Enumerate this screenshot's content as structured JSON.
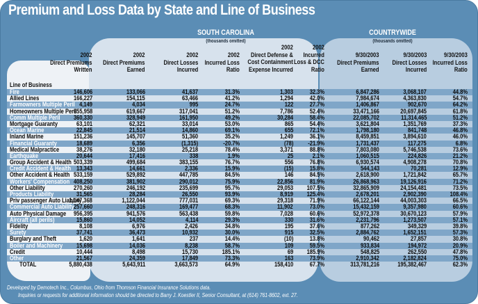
{
  "title": "Premium and Loss Data by State and Line of Business",
  "south_carolina": {
    "label": "SOUTH CAROLINA",
    "units": "(thousands omitted)"
  },
  "countrywide": {
    "label": "COUNTRYWIDE",
    "units": "(thousands omitted)"
  },
  "columns": {
    "lob": "Line of Business",
    "headers": [
      [
        "2002",
        "Direct Premiums",
        "Written"
      ],
      [
        "2002",
        "Direct Premiums",
        "Earned"
      ],
      [
        "2002",
        "Direct Losses",
        "Incurred"
      ],
      [
        "2002",
        "Incurred Loss",
        "Ratio"
      ],
      [
        "2002",
        "Direct Defense &",
        "Cost Containment",
        "Expense Incurred"
      ],
      [
        "2002",
        "Incurred",
        "Loss & DCC",
        "Ratio"
      ],
      [
        "9/30/2003",
        "Direct Premiums",
        "Earned"
      ],
      [
        "9/30/2003",
        "Direct Losses",
        "Incurred"
      ],
      [
        "9/30/2003",
        "Incurred Loss",
        "Ratio"
      ]
    ]
  },
  "rows": [
    [
      "Fire",
      "146,606",
      "133,066",
      "41,637",
      "31.3%",
      "1,303",
      "32.3%",
      "6,847,286",
      "3,068,107",
      "44.8%"
    ],
    [
      "Allied Lines",
      "166,227",
      "154,115",
      "63,466",
      "41.2%",
      "1,294",
      "42.0%",
      "7,984,674",
      "4,363,830",
      "54.7%"
    ],
    [
      "Farmowners Multiple Peril",
      "4,149",
      "4,034",
      "995",
      "24.7%",
      "122",
      "27.7%",
      "1,406,867",
      "902,670",
      "64.2%"
    ],
    [
      "Homeowners Multiple Peril",
      "655,958",
      "619,667",
      "317,041",
      "51.2%",
      "7,786",
      "52.4%",
      "33,471,166",
      "20,697,845",
      "61.8%"
    ],
    [
      "Comm Multiple Peril",
      "360,330",
      "328,949",
      "161,950",
      "49.2%",
      "30,284",
      "58.4%",
      "22,085,702",
      "11,314,465",
      "51.2%"
    ],
    [
      "Mortgage Guaranty",
      "63,101",
      "62,321",
      "33,014",
      "53.0%",
      "865",
      "54.4%",
      "3,621,804",
      "1,351,769",
      "37.3%"
    ],
    [
      "Ocean Marine",
      "22,845",
      "21,514",
      "14,860",
      "69.1%",
      "655",
      "72.1%",
      "1,798,180",
      "841,748",
      "46.8%"
    ],
    [
      "Inland Marine",
      "151,236",
      "145,707",
      "51,360",
      "35.2%",
      "1,249",
      "36.1%",
      "8,459,851",
      "3,894,610",
      "46.0%"
    ],
    [
      "Financial Guaranty",
      "18,689",
      "6,356",
      "(1,315)",
      "-20.7%",
      "(78)",
      "-21.9%",
      "1,731,437",
      "117,275",
      "6.8%"
    ],
    [
      "Medical Malpractice",
      "38,276",
      "32,180",
      "25,218",
      "78.4%",
      "3,371",
      "88.8%",
      "7,803,080",
      "5,746,538",
      "73.6%"
    ],
    [
      "Earthquake",
      "20,644",
      "17,416",
      "338",
      "1.9%",
      "25",
      "2.1%",
      "1,060,515",
      "224,826",
      "21.2%"
    ],
    [
      "Group Accident & Health",
      "503,339",
      "499,684",
      "383,155",
      "76.7%",
      "556",
      "76.8%",
      "6,930,574",
      "4,908,278",
      "70.8%"
    ],
    [
      "Credit Accident & Health",
      "13,343",
      "14,661",
      "2,336",
      "15.9%",
      "(15)",
      "15.8%",
      "544,143",
      "70,281",
      "12.9%"
    ],
    [
      "Other Accident & Health",
      "533,159",
      "529,892",
      "447,785",
      "84.5%",
      "146",
      "84.5%",
      "2,618,900",
      "1,721,842",
      "65.7%"
    ],
    [
      "Workers' Compensation",
      "408,250",
      "381,902",
      "290,012",
      "75.9%",
      "22,856",
      "81.9%",
      "26,868,963",
      "19,126,916",
      "71.2%"
    ],
    [
      "Other Liability",
      "270,260",
      "246,192",
      "235,699",
      "95.7%",
      "29,053",
      "107.5%",
      "32,865,909",
      "24,154,481",
      "73.5%"
    ],
    [
      "Products Liability",
      "31,565",
      "28,284",
      "26,550",
      "93.9%",
      "8,919",
      "125.4%",
      "2,678,201",
      "2,902,390",
      "108.4%"
    ],
    [
      "Priv passenger Auto Liability",
      "1,147,368",
      "1,122,044",
      "777,031",
      "69.3%",
      "29,318",
      "71.9%",
      "66,122,144",
      "44,003,303",
      "66.5%"
    ],
    [
      "Commercial Auto Liability",
      "257,660",
      "248,316",
      "169,477",
      "68.3%",
      "11,902",
      "73.0%",
      "15,432,159",
      "9,357,980",
      "60.6%"
    ],
    [
      "Auto Physical Damage",
      "956,395",
      "941,576",
      "563,438",
      "59.8%",
      "7,028",
      "60.6%",
      "52,972,378",
      "30,670,123",
      "57.9%"
    ],
    [
      "Aircraft (all perils)",
      "15,860",
      "14,052",
      "4,114",
      "29.3%",
      "330",
      "31.6%",
      "2,231,796",
      "1,273,507",
      "57.1%"
    ],
    [
      "Fidelity",
      "8,108",
      "6,976",
      "2,426",
      "34.8%",
      "195",
      "37.6%",
      "877,262",
      "349,329",
      "39.8%"
    ],
    [
      "Surety",
      "37,741",
      "36,473",
      "10,932",
      "30.0%",
      "915",
      "32.5%",
      "2,884,762",
      "1,652,151",
      "57.3%"
    ],
    [
      "Burglary and Theft",
      "1,620",
      "1,641",
      "237",
      "14.4%",
      "(10)",
      "13.8%",
      "90,462",
      "27,857",
      "30.8%"
    ],
    [
      "Boiler and Machinery",
      "15,698",
      "14,036",
      "8,238",
      "58.7%",
      "109",
      "59.5%",
      "933,834",
      "194,972",
      "20.9%"
    ],
    [
      "Credit",
      "10,444",
      "8,498",
      "15,730",
      "185.1%",
      "69",
      "185.9%",
      "548,825",
      "262,550",
      "47.8%"
    ],
    [
      "Other",
      "21,567",
      "24,359",
      "17,849",
      "73.3%",
      "163",
      "73.9%",
      "2,910,342",
      "2,182,824",
      "75.0%"
    ],
    [
      "TOTAL",
      "5,880,438",
      "5,643,911",
      "3,663,573",
      "64.9%",
      "158,410",
      "67.7%",
      "313,781,216",
      "195,382,467",
      "62.3%"
    ]
  ],
  "footer": {
    "line1": "Developed by Demotech Inc., Columbus, Ohio from Thomson Financial Insurance Solutions data.",
    "line2": "Inquiries or requests for additional information should be directed to Barry J. Koestler II, Senior Consultant, at (614) 761-8602, ext. 27."
  }
}
